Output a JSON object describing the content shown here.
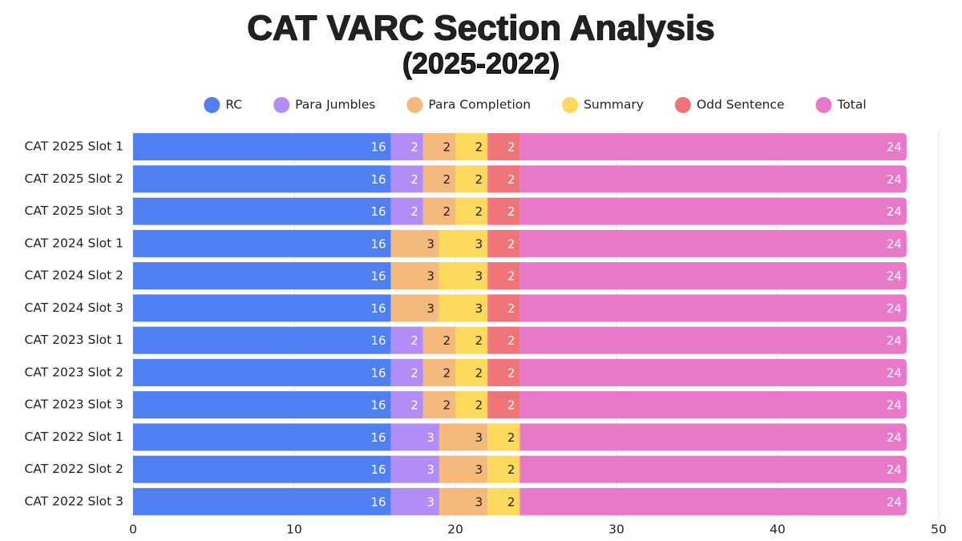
{
  "chart_data": {
    "type": "stacked_barh",
    "title": "CAT VARC Section Analysis",
    "subtitle": "(2025-2022)",
    "categories": [
      "CAT 2025 Slot 1",
      "CAT 2025 Slot 2",
      "CAT 2025 Slot 3",
      "CAT 2024 Slot 1",
      "CAT 2024 Slot 2",
      "CAT 2024 Slot 3",
      "CAT 2023 Slot 1",
      "CAT 2023 Slot 2",
      "CAT 2023 Slot 3",
      "CAT 2022 Slot 1",
      "CAT 2022 Slot 2",
      "CAT 2022 Slot 3"
    ],
    "series": [
      {
        "name": "RC",
        "color": "#4f7ff1",
        "values": [
          16,
          16,
          16,
          16,
          16,
          16,
          16,
          16,
          16,
          16,
          16,
          16
        ]
      },
      {
        "name": "Para Jumbles",
        "color": "#b08ef5",
        "values": [
          2,
          2,
          2,
          null,
          null,
          null,
          2,
          2,
          2,
          3,
          3,
          3
        ]
      },
      {
        "name": "Para Completion",
        "color": "#f4b97b",
        "values": [
          2,
          2,
          2,
          3,
          3,
          3,
          2,
          2,
          2,
          3,
          3,
          3
        ]
      },
      {
        "name": "Summary",
        "color": "#fcd95c",
        "values": [
          2,
          2,
          2,
          3,
          3,
          3,
          2,
          2,
          2,
          2,
          2,
          2
        ]
      },
      {
        "name": "Odd Sentence",
        "color": "#ee747a",
        "values": [
          2,
          2,
          2,
          2,
          2,
          2,
          2,
          2,
          2,
          null,
          null,
          null
        ]
      },
      {
        "name": "Total",
        "color": "#e879c8",
        "values": [
          24,
          24,
          24,
          24,
          24,
          24,
          24,
          24,
          24,
          24,
          24,
          24
        ]
      }
    ],
    "xlim": [
      0,
      50
    ],
    "xticks": [
      0,
      10,
      20,
      30,
      40,
      50
    ],
    "grid": true,
    "legend": "top"
  }
}
